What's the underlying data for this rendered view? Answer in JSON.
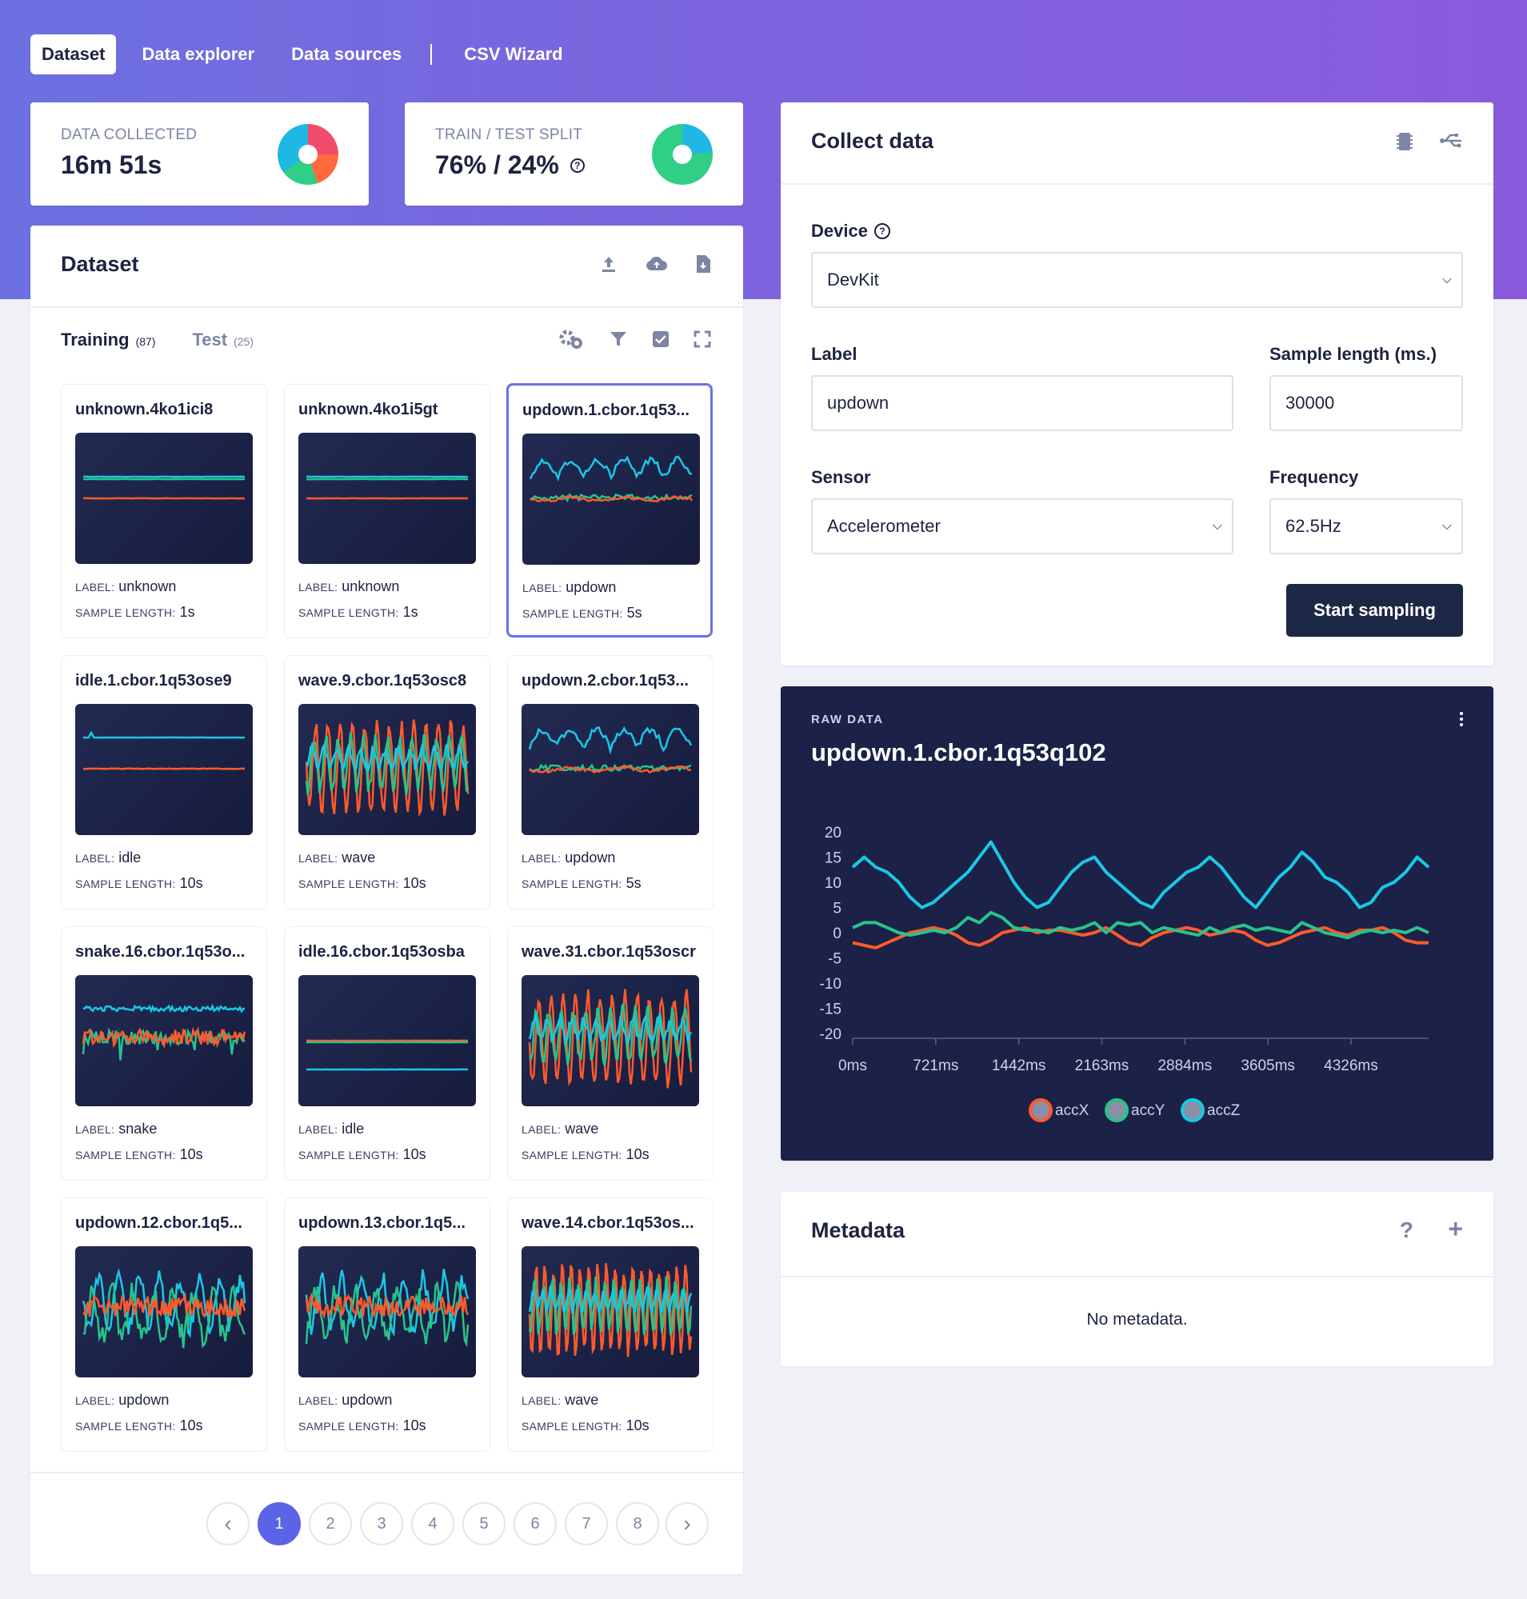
{
  "nav": {
    "tabs": [
      {
        "label": "Dataset",
        "active": true
      },
      {
        "label": "Data explorer",
        "active": false
      },
      {
        "label": "Data sources",
        "active": false
      }
    ],
    "extra_tab": "CSV Wizard"
  },
  "stats": {
    "collected": {
      "title": "DATA COLLECTED",
      "value": "16m 51s"
    },
    "split": {
      "title": "TRAIN / TEST SPLIT",
      "value": "76% / 24%"
    }
  },
  "dataset": {
    "title": "Dataset",
    "training_label": "Training",
    "training_count": "(87)",
    "test_label": "Test",
    "test_count": "(25)",
    "samples": [
      {
        "name": "unknown.4ko1ici8",
        "label": "unknown",
        "length": "1s",
        "kind": "flat-top"
      },
      {
        "name": "unknown.4ko1i5gt",
        "label": "unknown",
        "length": "1s",
        "kind": "flat-top"
      },
      {
        "name": "updown.1.cbor.1q53...",
        "label": "updown",
        "length": "5s",
        "kind": "updown",
        "selected": true
      },
      {
        "name": "idle.1.cbor.1q53ose9",
        "label": "idle",
        "length": "10s",
        "kind": "idle"
      },
      {
        "name": "wave.9.cbor.1q53osc8",
        "label": "wave",
        "length": "10s",
        "kind": "wave"
      },
      {
        "name": "updown.2.cbor.1q53...",
        "label": "updown",
        "length": "5s",
        "kind": "updown"
      },
      {
        "name": "snake.16.cbor.1q53o...",
        "label": "snake",
        "length": "10s",
        "kind": "snake"
      },
      {
        "name": "idle.16.cbor.1q53osba",
        "label": "idle",
        "length": "10s",
        "kind": "idle2"
      },
      {
        "name": "wave.31.cbor.1q53oscr",
        "label": "wave",
        "length": "10s",
        "kind": "wave"
      },
      {
        "name": "updown.12.cbor.1q5...",
        "label": "updown",
        "length": "10s",
        "kind": "mix"
      },
      {
        "name": "updown.13.cbor.1q5...",
        "label": "updown",
        "length": "10s",
        "kind": "mix"
      },
      {
        "name": "wave.14.cbor.1q53os...",
        "label": "wave",
        "length": "10s",
        "kind": "wave-dense"
      }
    ],
    "label_prefix": "LABEL:",
    "length_prefix": "SAMPLE LENGTH:",
    "pages": [
      "1",
      "2",
      "3",
      "4",
      "5",
      "6",
      "7",
      "8"
    ],
    "current_page": "1",
    "prev_glyph": "‹",
    "next_glyph": "›"
  },
  "collect": {
    "title": "Collect data",
    "device_label": "Device",
    "device_value": "DevKit",
    "label_label": "Label",
    "label_value": "updown",
    "length_label": "Sample length (ms.)",
    "length_value": "30000",
    "sensor_label": "Sensor",
    "sensor_value": "Accelerometer",
    "freq_label": "Frequency",
    "freq_value": "62.5Hz",
    "start_button": "Start sampling"
  },
  "raw": {
    "caption": "RAW DATA",
    "title": "updown.1.cbor.1q53q102"
  },
  "metadata": {
    "title": "Metadata",
    "help": "?",
    "add": "+",
    "empty": "No metadata."
  },
  "colors": {
    "accX": "#ff5a2c",
    "accY": "#27c48a",
    "accZ": "#19c8e6",
    "accent": "#5b63e6",
    "panel_dark": "#1b2147"
  },
  "chart_data": {
    "type": "line",
    "title": "",
    "xlabel": "",
    "ylabel": "",
    "x_ticks": [
      "0ms",
      "721ms",
      "1442ms",
      "2163ms",
      "2884ms",
      "3605ms",
      "4326ms"
    ],
    "y_ticks": [
      20,
      15,
      10,
      5,
      0,
      -5,
      -10,
      -15,
      -20
    ],
    "ylim": [
      -20,
      20
    ],
    "xlim": [
      0,
      5000
    ],
    "x": [
      0,
      100,
      200,
      300,
      400,
      500,
      600,
      700,
      800,
      900,
      1000,
      1100,
      1200,
      1300,
      1400,
      1500,
      1600,
      1700,
      1800,
      1900,
      2000,
      2100,
      2200,
      2300,
      2400,
      2500,
      2600,
      2700,
      2800,
      2900,
      3000,
      3100,
      3200,
      3300,
      3400,
      3500,
      3600,
      3700,
      3800,
      3900,
      4000,
      4100,
      4200,
      4300,
      4400,
      4500,
      4600,
      4700,
      4800,
      4900,
      5000
    ],
    "series": [
      {
        "name": "accX",
        "values": [
          -2,
          -2.5,
          -3,
          -2,
          -1,
          0,
          0.5,
          1,
          0.5,
          -0.5,
          -2,
          -2.5,
          -1.5,
          0,
          0.5,
          1,
          0,
          0.5,
          0.5,
          0,
          -0.5,
          0,
          1,
          -0.5,
          -2,
          -2.5,
          -1,
          0,
          0.5,
          1,
          0.5,
          -0.5,
          0,
          0.5,
          0,
          -1.5,
          -2.5,
          -2,
          -1,
          0,
          0.5,
          1,
          0,
          -0.5,
          0.5,
          0.5,
          1,
          0,
          -1.5,
          -2,
          -2
        ]
      },
      {
        "name": "accY",
        "values": [
          1,
          2,
          2,
          1,
          0,
          -0.5,
          0,
          0.5,
          0,
          1,
          3,
          2,
          4,
          3,
          1,
          0.5,
          0.5,
          0,
          1,
          0.5,
          1,
          2,
          0,
          2,
          1.5,
          2,
          0,
          1,
          0.5,
          0,
          -0.5,
          1,
          0,
          1,
          1.5,
          0.5,
          1,
          0.5,
          0,
          2,
          1,
          0,
          -0.5,
          -1,
          0,
          0.5,
          0,
          0.5,
          0,
          1,
          0
        ]
      },
      {
        "name": "accZ",
        "values": [
          13,
          15,
          13,
          12,
          10,
          7,
          5,
          6,
          8,
          10,
          12,
          15,
          18,
          14,
          10,
          7,
          5,
          6,
          9,
          12,
          14,
          15,
          12,
          10,
          8,
          6,
          5,
          8,
          10,
          12,
          13,
          15,
          13,
          10,
          7,
          5,
          8,
          11,
          13,
          16,
          14,
          11,
          10,
          8,
          5,
          6,
          9,
          10,
          12,
          15,
          13
        ]
      }
    ],
    "legend": "bottom-center"
  }
}
